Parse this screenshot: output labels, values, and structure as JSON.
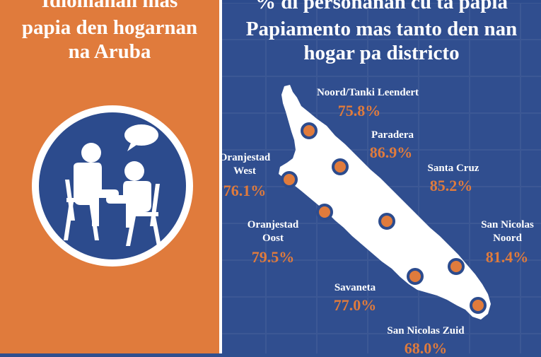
{
  "left_panel": {
    "title_line1": "Idiomanan mas",
    "title_line2": "papia den hogarnan",
    "title_line3": "na Aruba",
    "icon": "two-people-conversation-icon"
  },
  "right_panel": {
    "title_line1": "% di personanan cu ta papia",
    "title_line2": "Papiamento mas tanto den nan",
    "title_line3": "hogar pa districto",
    "map_icon": "aruba-map-icon"
  },
  "districts": [
    {
      "name": "Noord/Tanki Leendert",
      "name_line2": "",
      "value": "75.8%"
    },
    {
      "name": "Paradera",
      "name_line2": "",
      "value": "86.9%"
    },
    {
      "name": "Santa Cruz",
      "name_line2": "",
      "value": "85.2%"
    },
    {
      "name": "Oranjestad",
      "name_line2": "West",
      "value": "76.1%"
    },
    {
      "name": "Oranjestad",
      "name_line2": "Oost",
      "value": "79.5%"
    },
    {
      "name": "San Nicolas",
      "name_line2": "Noord",
      "value": "81.4%"
    },
    {
      "name": "Savaneta",
      "name_line2": "",
      "value": "77.0%"
    },
    {
      "name": "San Nicolas Zuid",
      "name_line2": "",
      "value": "68.0%"
    }
  ],
  "colors": {
    "orange": "#e07b3c",
    "blue": "#2c4b8d",
    "white": "#ffffff"
  }
}
